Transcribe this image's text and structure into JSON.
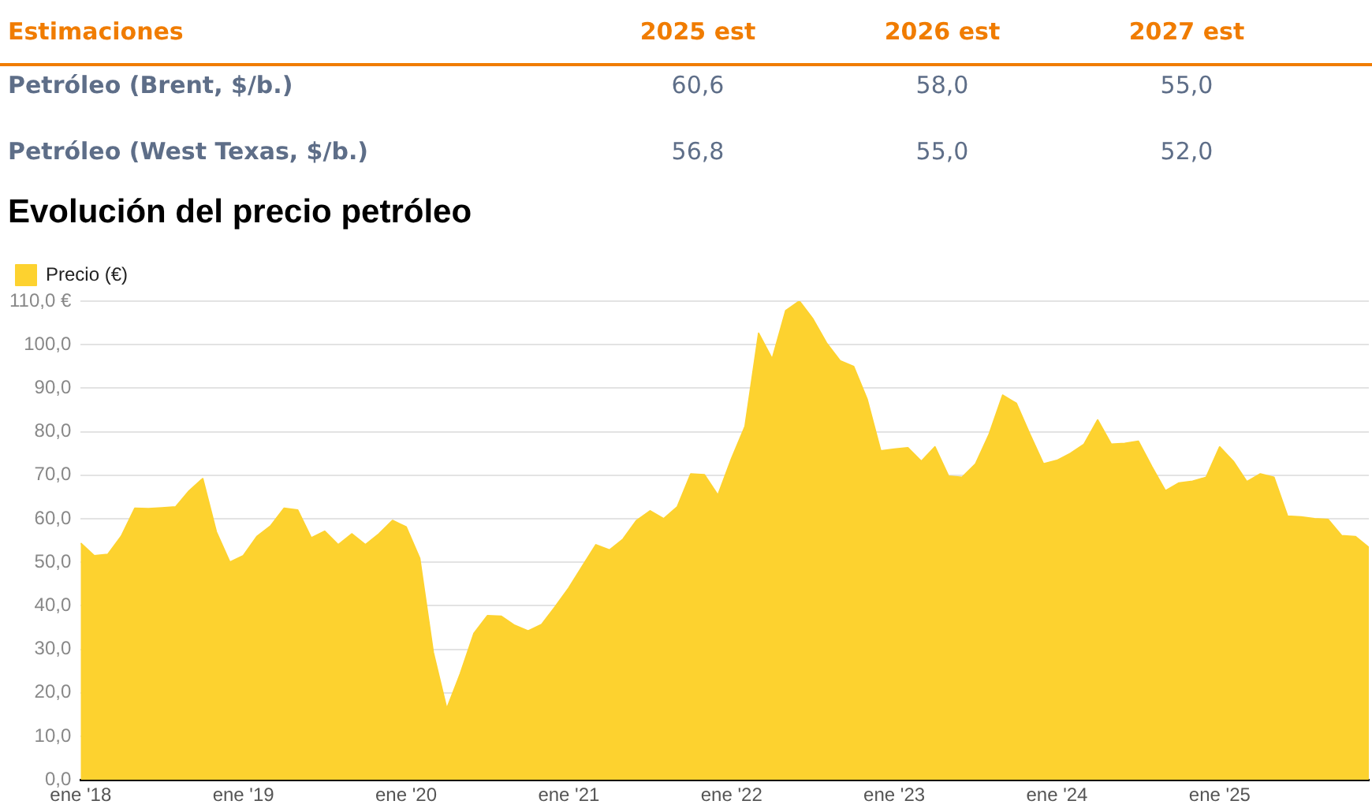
{
  "chart_data": {
    "type": "area",
    "title": "Evolución del precio petróleo",
    "annotations": [
      "Estimaciones",
      "2025 est",
      "2026 est",
      "2027 est",
      "Petróleo (Brent, $/b.)",
      "60,6",
      "58,0",
      "55,0",
      "Petróleo (West Texas, $/b.)",
      "56,8",
      "55,0",
      "52,0"
    ],
    "x": [
      "2018-01",
      "2018-02",
      "2018-03",
      "2018-04",
      "2018-05",
      "2018-06",
      "2018-07",
      "2018-08",
      "2018-09",
      "2018-10",
      "2018-11",
      "2018-12",
      "2019-01",
      "2019-02",
      "2019-03",
      "2019-04",
      "2019-05",
      "2019-06",
      "2019-07",
      "2019-08",
      "2019-09",
      "2019-10",
      "2019-11",
      "2019-12",
      "2020-01",
      "2020-02",
      "2020-03",
      "2020-04",
      "2020-05",
      "2020-06",
      "2020-07",
      "2020-08",
      "2020-09",
      "2020-10",
      "2020-11",
      "2020-12",
      "2021-01",
      "2021-02",
      "2021-03",
      "2021-04",
      "2021-05",
      "2021-06",
      "2021-07",
      "2021-08",
      "2021-09",
      "2021-10",
      "2021-11",
      "2021-12",
      "2022-01",
      "2022-02",
      "2022-03",
      "2022-04",
      "2022-05",
      "2022-06",
      "2022-07",
      "2022-08",
      "2022-09",
      "2022-10",
      "2022-11",
      "2022-12",
      "2023-01",
      "2023-02",
      "2023-03",
      "2023-04",
      "2023-05",
      "2023-06",
      "2023-07",
      "2023-08",
      "2023-09",
      "2023-10",
      "2023-11",
      "2023-12",
      "2024-01",
      "2024-02",
      "2024-03",
      "2024-04",
      "2024-05",
      "2024-06",
      "2024-07",
      "2024-08",
      "2024-09",
      "2024-10",
      "2024-11",
      "2024-12",
      "2025-01",
      "2025-02",
      "2025-03",
      "2025-04",
      "2025-05",
      "2025-06",
      "2025-07",
      "2025-08",
      "2025-09",
      "2025-10",
      "2025-11",
      "2025-12"
    ],
    "series": [
      {
        "name": "Precio (€)",
        "color": "#fdd22f",
        "values": [
          54.4,
          51.5,
          51.8,
          56,
          62.4,
          62.3,
          62.5,
          62.7,
          66.4,
          69.2,
          57,
          50,
          51.5,
          55.9,
          58.3,
          62.4,
          62,
          55.6,
          57.1,
          54,
          56.5,
          54,
          56.5,
          59.6,
          58.1,
          50.9,
          29.3,
          16.3,
          24.4,
          33.6,
          37.7,
          37.6,
          35.5,
          34.2,
          35.7,
          39.8,
          44.1,
          49.1,
          54,
          52.8,
          55.3,
          59.6,
          61.8,
          60,
          62.7,
          70.3,
          70.1,
          65.4,
          73.8,
          81.2,
          102.6,
          96.7,
          107.8,
          110,
          105.9,
          100.4,
          96.3,
          95,
          87.4,
          75.6,
          76,
          76.3,
          73.2,
          76.5,
          69.8,
          69.5,
          72.6,
          79.4,
          88.4,
          86.5,
          79.4,
          72.6,
          73.4,
          75,
          77.1,
          82.7,
          77.1,
          77.3,
          77.8,
          71.9,
          66.4,
          68.2,
          68.6,
          69.5,
          76.5,
          73.2,
          68.5,
          70.3,
          69.5,
          60.6,
          60.4,
          60,
          59.8,
          56.1,
          55.9,
          53.4
        ]
      }
    ],
    "xlim": [
      "2018-01",
      "2025-12"
    ],
    "xticks": [
      {
        "value": "2018-01",
        "label": "ene '18"
      },
      {
        "value": "2019-01",
        "label": "ene '19"
      },
      {
        "value": "2020-01",
        "label": "ene '20"
      },
      {
        "value": "2021-01",
        "label": "ene '21"
      },
      {
        "value": "2022-01",
        "label": "ene '22"
      },
      {
        "value": "2023-01",
        "label": "ene '23"
      },
      {
        "value": "2024-01",
        "label": "ene '24"
      },
      {
        "value": "2025-01",
        "label": "ene '25"
      }
    ],
    "ylim": [
      0,
      110
    ],
    "yticks": [
      {
        "value": 0,
        "label": "0,0"
      },
      {
        "value": 10,
        "label": "10,0"
      },
      {
        "value": 20,
        "label": "20,0"
      },
      {
        "value": 30,
        "label": "30,0"
      },
      {
        "value": 40,
        "label": "40,0"
      },
      {
        "value": 50,
        "label": "50,0"
      },
      {
        "value": 60,
        "label": "60,0"
      },
      {
        "value": 70,
        "label": "70,0"
      },
      {
        "value": 80,
        "label": "80,0"
      },
      {
        "value": 90,
        "label": "90,0"
      },
      {
        "value": 100,
        "label": "100,0"
      },
      {
        "value": 110,
        "label": "110,0 €"
      }
    ],
    "grid": "y",
    "legend": "top left",
    "marker": "none"
  }
}
